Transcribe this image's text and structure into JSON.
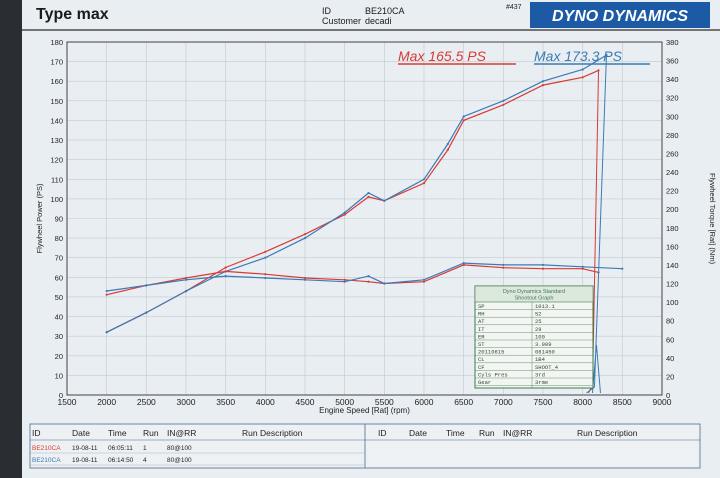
{
  "header": {
    "title": "Type max",
    "id_label": "ID",
    "id_value": "BE210CA",
    "customer_label": "Customer",
    "customer_value": "decadi",
    "sheet_number": "#437",
    "brand": "DYNO DYNAMICS"
  },
  "annotations": {
    "max_red": "Max 165.5 PS",
    "max_blue": "Max 173.3 PS"
  },
  "colors": {
    "run_red": "#d93a34",
    "run_blue": "#3b7bb5",
    "grid": "#c5c9cc",
    "paper": "#e9eef3",
    "box_green": "#3f7a4f"
  },
  "chart_data": {
    "type": "line",
    "xlabel": "Engine Speed [Rat] (rpm)",
    "ylabel_left": "Flywheel Power (PS)",
    "ylabel_right": "Flywheel Torque [Rat] (Nm)",
    "xlim": [
      1500,
      9000
    ],
    "ylim_left": [
      0,
      180
    ],
    "ylim_right": [
      0,
      380
    ],
    "x_ticks": [
      "1500",
      "2000",
      "2500",
      "3000",
      "3500",
      "4000",
      "4500",
      "5000",
      "5500",
      "6000",
      "6500",
      "7000",
      "7500",
      "8000",
      "8500",
      "9000"
    ],
    "y_ticks_left": [
      "0",
      "10",
      "20",
      "30",
      "40",
      "50",
      "60",
      "70",
      "80",
      "90",
      "100",
      "110",
      "120",
      "130",
      "140",
      "150",
      "160",
      "170",
      "180"
    ],
    "y_ticks_right": [
      "0",
      "20",
      "40",
      "60",
      "80",
      "100",
      "120",
      "140",
      "160",
      "180",
      "200",
      "220",
      "240",
      "260",
      "280",
      "300",
      "320",
      "340",
      "360",
      "380"
    ],
    "series": [
      {
        "color": "#d93a34",
        "axis": "left",
        "x": [
          2000,
          2500,
          3000,
          3500,
          4000,
          4500,
          5000,
          5300,
          5500,
          6000,
          6300,
          6500,
          7000,
          7500,
          8000,
          8200
        ],
        "values": [
          32,
          42,
          53,
          65,
          73,
          82,
          92,
          101,
          99,
          108,
          125,
          140,
          148,
          158,
          162,
          165.5
        ]
      },
      {
        "color": "#3b7bb5",
        "axis": "left",
        "x": [
          2000,
          2500,
          3000,
          3500,
          4000,
          4500,
          5000,
          5300,
          5500,
          6000,
          6300,
          6500,
          7000,
          7500,
          8000,
          8300
        ],
        "values": [
          32,
          42,
          53,
          63,
          70,
          80,
          93,
          103,
          99,
          110,
          128,
          142,
          150,
          160,
          166,
          173.3
        ]
      },
      {
        "color": "#d93a34",
        "axis": "right",
        "x": [
          2000,
          2500,
          3000,
          3500,
          4000,
          4500,
          5000,
          5300,
          5500,
          6000,
          6500,
          7000,
          7500,
          8000,
          8200
        ],
        "values": [
          108,
          118,
          126,
          133,
          130,
          126,
          124,
          122,
          120,
          122,
          140,
          137,
          136,
          136,
          132
        ]
      },
      {
        "color": "#3b7bb5",
        "axis": "right",
        "x": [
          2000,
          2500,
          3000,
          3500,
          4000,
          4500,
          5000,
          5300,
          5500,
          6000,
          6500,
          7000,
          7500,
          8000,
          8500
        ],
        "values": [
          112,
          118,
          124,
          128,
          126,
          124,
          122,
          128,
          120,
          124,
          142,
          140,
          140,
          138,
          136
        ]
      }
    ]
  },
  "info_box": {
    "title": "Dyno Dynamics Standard\nShootout Graph",
    "rows": [
      [
        "SP",
        "1013.1"
      ],
      [
        "RH",
        "52"
      ],
      [
        "AT",
        "25"
      ],
      [
        "IT",
        "29"
      ],
      [
        "ER",
        "100"
      ],
      [
        "ST",
        "3.909"
      ],
      [
        "20110815",
        "081450"
      ],
      [
        "CL",
        "1B4"
      ],
      [
        "CF",
        "SHOOT_4"
      ],
      [
        "Cyls Pres",
        "3rd"
      ],
      [
        "Gear",
        "3rme"
      ]
    ]
  },
  "table": {
    "headers": [
      "ID",
      "Date",
      "Time",
      "Run",
      "IN@RR",
      "Run Description"
    ],
    "rows": [
      {
        "id": "BE210CA",
        "date": "19-08-11",
        "time": "06:05:11",
        "run": "1",
        "inrr": "80@100",
        "desc": ""
      },
      {
        "id": "BE210CA",
        "date": "19-08-11",
        "time": "06:14:50",
        "run": "4",
        "inrr": "80@100",
        "desc": ""
      }
    ],
    "headers_right": [
      "ID",
      "Date",
      "Time",
      "Run",
      "IN@RR",
      "Run Description"
    ]
  }
}
